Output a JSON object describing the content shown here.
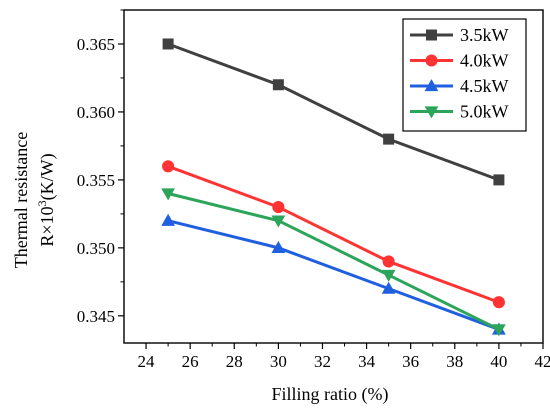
{
  "chart_data": {
    "type": "line",
    "title": "",
    "xlabel": "Filling ratio (%)",
    "ylabel_line1": "Thermal resistance",
    "ylabel_line2_prefix": "R×10",
    "ylabel_line2_sup": "3",
    "ylabel_line2_suffix": "(K/W)",
    "xlim": [
      23,
      42
    ],
    "ylim": [
      0.343,
      0.3675
    ],
    "xticks": [
      24,
      26,
      28,
      30,
      32,
      34,
      36,
      38,
      40,
      42
    ],
    "xtick_labels": [
      "24",
      "26",
      "28",
      "30",
      "32",
      "34",
      "36",
      "38",
      "40",
      "42"
    ],
    "yticks": [
      0.345,
      0.35,
      0.355,
      0.36,
      0.365
    ],
    "ytick_labels": [
      "0.345",
      "0.350",
      "0.355",
      "0.360",
      "0.365"
    ],
    "grid": false,
    "legend_position": "top-right",
    "series": [
      {
        "name": "3.5kW",
        "color": "#404040",
        "marker": "square",
        "x": [
          25,
          30,
          35,
          40
        ],
        "y": [
          0.365,
          0.362,
          0.358,
          0.355
        ]
      },
      {
        "name": "4.0kW",
        "color": "#ff3333",
        "marker": "circle",
        "x": [
          25,
          30,
          35,
          40
        ],
        "y": [
          0.356,
          0.353,
          0.349,
          0.346
        ]
      },
      {
        "name": "4.5kW",
        "color": "#1f5fe0",
        "marker": "triangle-up",
        "x": [
          25,
          30,
          35,
          40
        ],
        "y": [
          0.352,
          0.35,
          0.347,
          0.344
        ]
      },
      {
        "name": "5.0kW",
        "color": "#2ca55a",
        "marker": "triangle-down",
        "x": [
          25,
          30,
          35,
          40
        ],
        "y": [
          0.354,
          0.352,
          0.348,
          0.344
        ]
      }
    ]
  }
}
